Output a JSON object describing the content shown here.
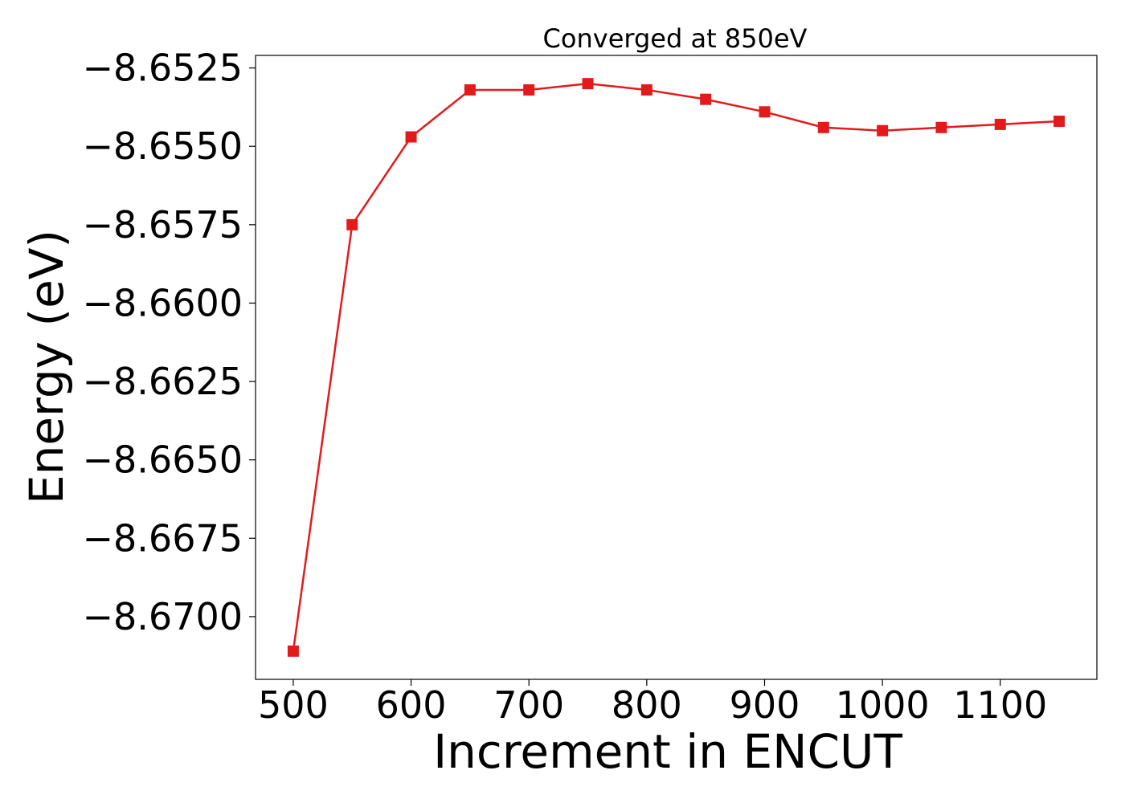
{
  "chart_data": {
    "type": "line",
    "title": "Converged at 850eV",
    "xlabel": "Increment in ENCUT",
    "ylabel": "Energy (eV)",
    "xlim": [
      468,
      1182
    ],
    "ylim": [
      -8.672,
      -8.6521
    ],
    "x_ticks": [
      500,
      600,
      700,
      800,
      900,
      1000,
      1100
    ],
    "x_tick_labels": [
      "500",
      "600",
      "700",
      "800",
      "900",
      "1000",
      "1100"
    ],
    "y_ticks": [
      -8.6525,
      -8.655,
      -8.6575,
      -8.66,
      -8.6625,
      -8.665,
      -8.6675,
      -8.67
    ],
    "y_tick_labels": [
      "−8.6525",
      "−8.6550",
      "−8.6575",
      "−8.6600",
      "−8.6625",
      "−8.6650",
      "−8.6675",
      "−8.6700"
    ],
    "grid": false,
    "series": [
      {
        "color": "#e31a1c",
        "marker": "square",
        "x": [
          500,
          550,
          600,
          650,
          700,
          750,
          800,
          850,
          900,
          950,
          1000,
          1050,
          1100,
          1150
        ],
        "y": [
          -8.6711,
          -8.6575,
          -8.6547,
          -8.6532,
          -8.6532,
          -8.653,
          -8.6532,
          -8.6535,
          -8.6539,
          -8.6544,
          -8.6545,
          -8.6544,
          -8.6543,
          -8.6542
        ]
      }
    ]
  }
}
